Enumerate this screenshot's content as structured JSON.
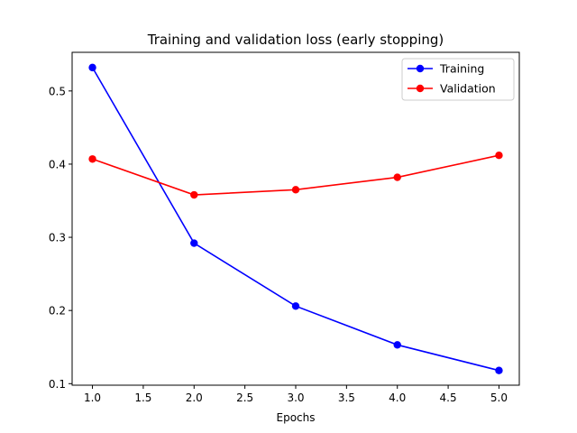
{
  "chart_data": {
    "type": "line",
    "title": "Training and validation loss (early stopping)",
    "xlabel": "Epochs",
    "ylabel": "",
    "x": [
      1,
      2,
      3,
      4,
      5
    ],
    "xlim": [
      0.8,
      5.2
    ],
    "ylim": [
      0.0979,
      0.5528
    ],
    "xticks": [
      1.0,
      1.5,
      2.0,
      2.5,
      3.0,
      3.5,
      4.0,
      4.5,
      5.0
    ],
    "xtick_labels": [
      "1.0",
      "1.5",
      "2.0",
      "2.5",
      "3.0",
      "3.5",
      "4.0",
      "4.5",
      "5.0"
    ],
    "yticks": [
      0.1,
      0.2,
      0.3,
      0.4,
      0.5
    ],
    "ytick_labels": [
      "0.1",
      "0.2",
      "0.3",
      "0.4",
      "0.5"
    ],
    "grid": false,
    "legend_position": "upper right",
    "series": [
      {
        "name": "Training",
        "color": "#0000ff",
        "marker": "circle",
        "values": [
          0.532,
          0.292,
          0.206,
          0.153,
          0.118
        ]
      },
      {
        "name": "Validation",
        "color": "#ff0000",
        "marker": "circle",
        "values": [
          0.407,
          0.358,
          0.365,
          0.382,
          0.412
        ]
      }
    ]
  }
}
